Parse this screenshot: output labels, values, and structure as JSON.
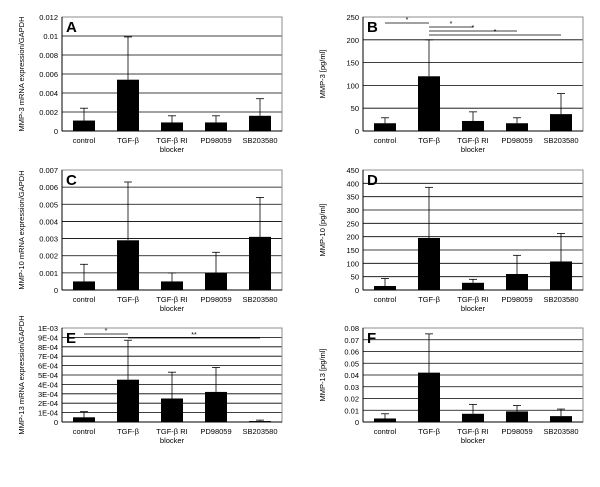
{
  "chart_data": [
    {
      "panel_letter": "A",
      "type": "bar",
      "ylabel": "MMP-3 mRNA expression/GAPDH",
      "categories": [
        "control",
        "TGF-β",
        "TGF-β RI blocker",
        "PD98059",
        "SB203580"
      ],
      "values": [
        0.0011,
        0.0054,
        0.0009,
        0.0009,
        0.0016
      ],
      "errors": [
        0.0013,
        0.0045,
        0.0007,
        0.0007,
        0.0018
      ],
      "ylim": [
        0,
        0.012
      ],
      "yticks": [
        "0",
        "0.002",
        "0.004",
        "0.006",
        "0.008",
        "0.01",
        "0.012"
      ],
      "significance": []
    },
    {
      "panel_letter": "B",
      "type": "bar",
      "ylabel": "MMP-3 [pg/ml]",
      "categories": [
        "control",
        "TGF-β",
        "TGF-β RI blocker",
        "PD98059",
        "SB203580"
      ],
      "values": [
        17,
        120,
        22,
        17,
        37
      ],
      "errors": [
        12,
        80,
        20,
        12,
        45
      ],
      "ylim": [
        0,
        250
      ],
      "yticks": [
        "0",
        "50",
        "100",
        "150",
        "200",
        "250"
      ],
      "significance": [
        {
          "from": 0,
          "to": 1,
          "label": "*"
        },
        {
          "from": 1,
          "to": 2,
          "label": "*"
        },
        {
          "from": 1,
          "to": 3,
          "label": "*"
        },
        {
          "from": 1,
          "to": 4,
          "label": "*"
        }
      ]
    },
    {
      "panel_letter": "C",
      "type": "bar",
      "ylabel": "MMP-10 mRNA expression/GAPDH",
      "categories": [
        "control",
        "TGF-β",
        "TGF-β RI blocker",
        "PD98059",
        "SB203580"
      ],
      "values": [
        0.0005,
        0.0029,
        0.0005,
        0.001,
        0.0031
      ],
      "errors": [
        0.001,
        0.0034,
        0.0005,
        0.0012,
        0.0023
      ],
      "ylim": [
        0,
        0.007
      ],
      "yticks": [
        "0",
        "0.001",
        "0.002",
        "0.003",
        "0.004",
        "0.005",
        "0.006",
        "0.007"
      ],
      "significance": []
    },
    {
      "panel_letter": "D",
      "type": "bar",
      "ylabel": "MMP-10 [pg/ml]",
      "categories": [
        "control",
        "TGF-β",
        "TGF-β RI blocker",
        "PD98059",
        "SB203580"
      ],
      "values": [
        15,
        195,
        27,
        60,
        107
      ],
      "errors": [
        28,
        190,
        13,
        70,
        105
      ],
      "ylim": [
        0,
        450
      ],
      "yticks": [
        "0",
        "50",
        "100",
        "150",
        "200",
        "250",
        "300",
        "350",
        "400",
        "450"
      ],
      "significance": []
    },
    {
      "panel_letter": "E",
      "type": "bar",
      "ylabel": "MMP-13 mRNA expression/GAPDH",
      "categories": [
        "control",
        "TGF-β",
        "TGF-β RI blocker",
        "PD98059",
        "SB203580"
      ],
      "values": [
        5e-05,
        0.00045,
        0.00025,
        0.00032,
        1e-05
      ],
      "errors": [
        6e-05,
        0.00042,
        0.00028,
        0.00026,
        1e-05
      ],
      "ylim": [
        0,
        0.001
      ],
      "yticks": [
        "0",
        "1E-04",
        "2E-04",
        "3E-04",
        "4E-04",
        "5E-04",
        "6E-04",
        "7E-04",
        "8E-04",
        "9E-04",
        "1E-03"
      ],
      "significance": [
        {
          "from": 0,
          "to": 1,
          "label": "*"
        },
        {
          "from": 1,
          "to": 4,
          "label": "**"
        }
      ]
    },
    {
      "panel_letter": "F",
      "type": "bar",
      "ylabel": "MMP-13 [pg/ml]",
      "categories": [
        "control",
        "TGF-β",
        "TGF-β RI blocker",
        "PD98059",
        "SB203580"
      ],
      "values": [
        0.003,
        0.042,
        0.007,
        0.009,
        0.005
      ],
      "errors": [
        0.004,
        0.033,
        0.008,
        0.005,
        0.006
      ],
      "ylim": [
        0,
        0.08
      ],
      "yticks": [
        "0",
        "0.01",
        "0.02",
        "0.03",
        "0.04",
        "0.05",
        "0.06",
        "0.07",
        "0.08"
      ],
      "significance": []
    }
  ]
}
